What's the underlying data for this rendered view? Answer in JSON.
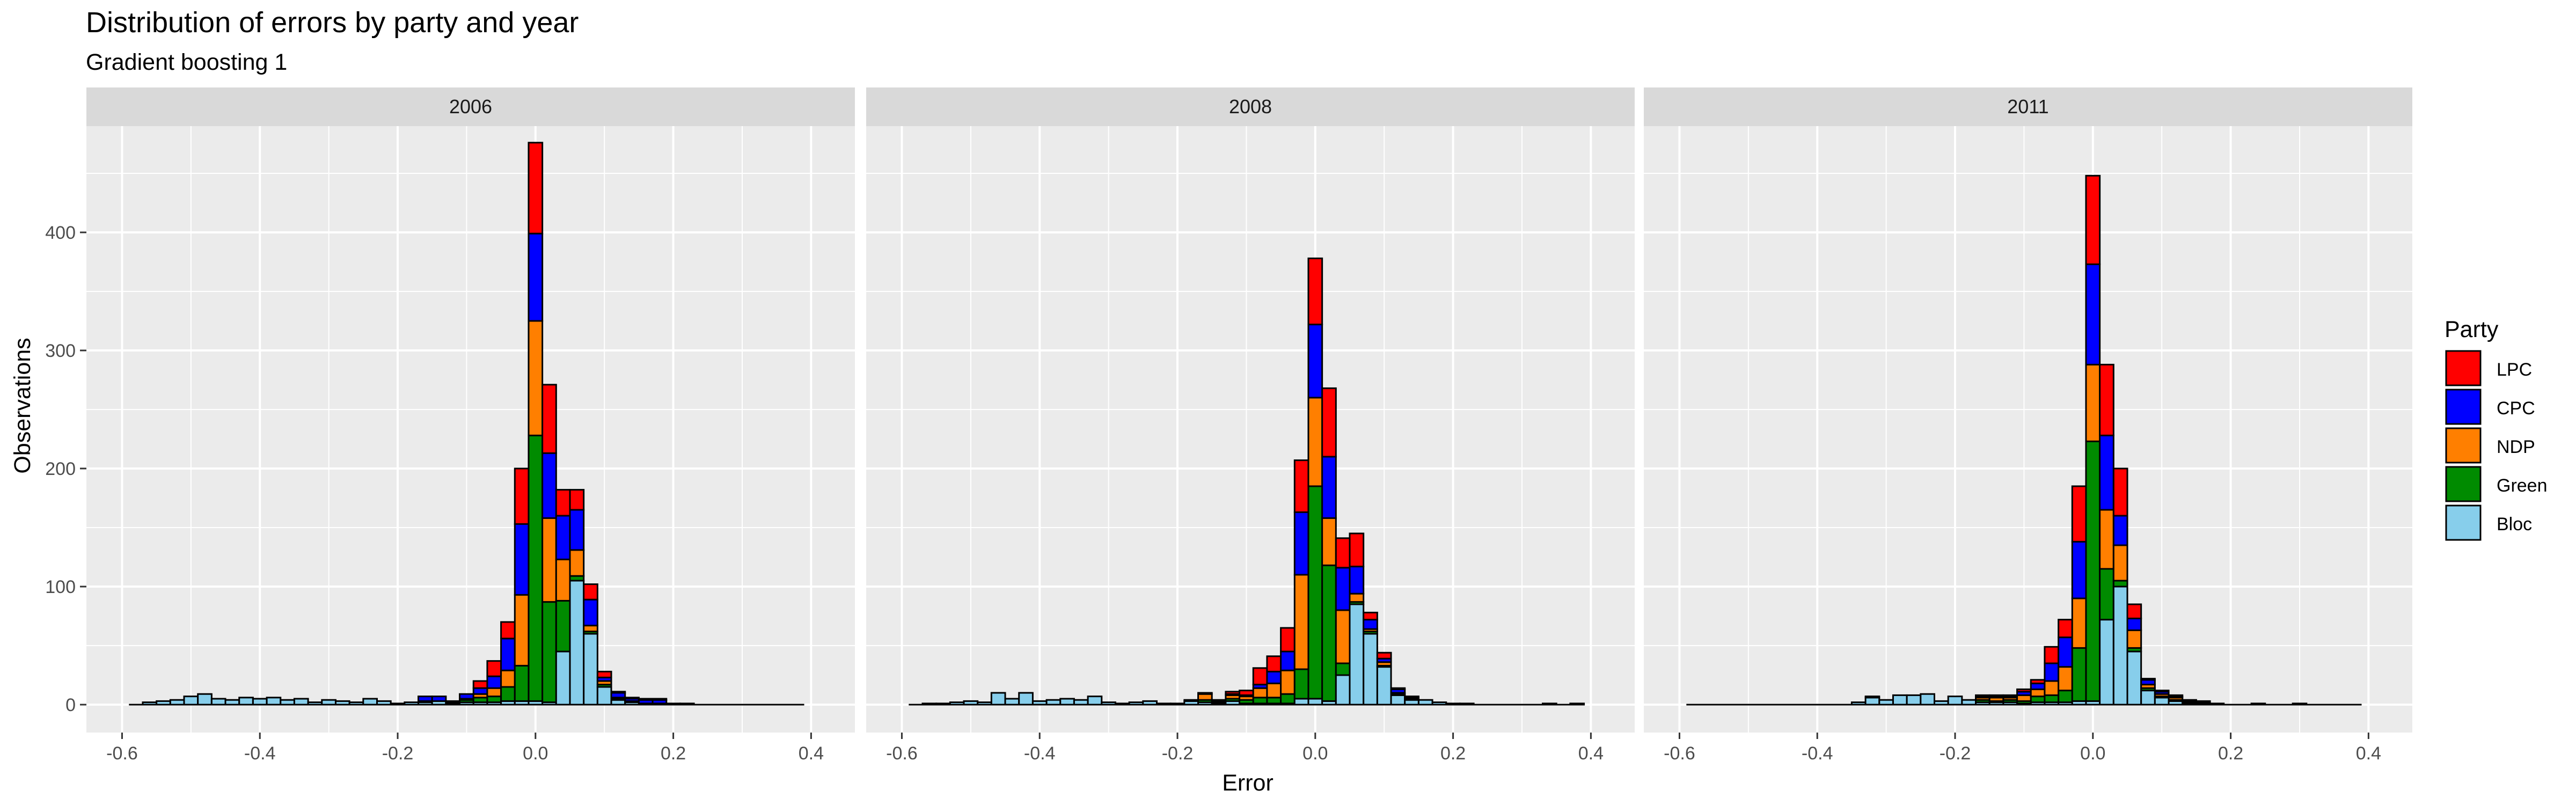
{
  "chart_data": {
    "type": "bar",
    "stacked": true,
    "faceted": true,
    "title": "Distribution of errors by party and year",
    "subtitle": "Gradient boosting 1",
    "xlabel": "Error",
    "ylabel": "Observations",
    "xlim": [
      -0.6,
      0.4
    ],
    "ylim": [
      0,
      490
    ],
    "xticks": [
      -0.6,
      -0.4,
      -0.2,
      0.0,
      0.2,
      0.4
    ],
    "xtick_labels": [
      "-0.6",
      "-0.4",
      "-0.2",
      "0.0",
      "0.2",
      "0.4"
    ],
    "yticks": [
      0,
      100,
      200,
      300,
      400
    ],
    "grid": true,
    "legend": {
      "title": "Party",
      "position": "right",
      "items": [
        {
          "name": "LPC",
          "color": "#ff0000"
        },
        {
          "name": "CPC",
          "color": "#0000ff"
        },
        {
          "name": "NDP",
          "color": "#ff7f00"
        },
        {
          "name": "Green",
          "color": "#008b00"
        },
        {
          "name": "Bloc",
          "color": "#87ceeb"
        }
      ]
    },
    "stack_order_bottom_to_top": [
      "Bloc",
      "Green",
      "NDP",
      "CPC",
      "LPC"
    ],
    "panels": [
      {
        "label": "2006",
        "bins": [
          {
            "x": -0.56,
            "Bloc": 2
          },
          {
            "x": -0.54,
            "Bloc": 3
          },
          {
            "x": -0.52,
            "Bloc": 4
          },
          {
            "x": -0.5,
            "Bloc": 7
          },
          {
            "x": -0.48,
            "Bloc": 9
          },
          {
            "x": -0.46,
            "Bloc": 5
          },
          {
            "x": -0.44,
            "Bloc": 4
          },
          {
            "x": -0.42,
            "Bloc": 6
          },
          {
            "x": -0.4,
            "Bloc": 5
          },
          {
            "x": -0.38,
            "Bloc": 6
          },
          {
            "x": -0.36,
            "Bloc": 4
          },
          {
            "x": -0.34,
            "Bloc": 5
          },
          {
            "x": -0.32,
            "Bloc": 2
          },
          {
            "x": -0.3,
            "Bloc": 4
          },
          {
            "x": -0.28,
            "Bloc": 3
          },
          {
            "x": -0.26,
            "Bloc": 2
          },
          {
            "x": -0.24,
            "Bloc": 5
          },
          {
            "x": -0.22,
            "Bloc": 3
          },
          {
            "x": -0.2,
            "Bloc": 1
          },
          {
            "x": -0.18,
            "Bloc": 2
          },
          {
            "x": -0.16,
            "Bloc": 2,
            "Green": 1,
            "CPC": 4
          },
          {
            "x": -0.14,
            "Bloc": 3,
            "CPC": 4
          },
          {
            "x": -0.12,
            "Bloc": 1,
            "Green": 1,
            "NDP": 1
          },
          {
            "x": -0.1,
            "Bloc": 2,
            "Green": 2,
            "NDP": 1,
            "CPC": 4
          },
          {
            "x": -0.08,
            "Bloc": 2,
            "Green": 4,
            "NDP": 3,
            "CPC": 5,
            "LPC": 6
          },
          {
            "x": -0.06,
            "Bloc": 2,
            "Green": 5,
            "NDP": 7,
            "CPC": 10,
            "LPC": 13
          },
          {
            "x": -0.04,
            "Bloc": 3,
            "Green": 12,
            "NDP": 14,
            "CPC": 27,
            "LPC": 14
          },
          {
            "x": -0.02,
            "Bloc": 3,
            "Green": 30,
            "NDP": 60,
            "CPC": 60,
            "LPC": 47
          },
          {
            "x": 0.0,
            "Bloc": 3,
            "Green": 225,
            "NDP": 97,
            "CPC": 74,
            "LPC": 77
          },
          {
            "x": 0.02,
            "Bloc": 2,
            "Green": 85,
            "NDP": 71,
            "CPC": 55,
            "LPC": 58
          },
          {
            "x": 0.04,
            "Bloc": 45,
            "Green": 43,
            "NDP": 35,
            "CPC": 37,
            "LPC": 22
          },
          {
            "x": 0.06,
            "Bloc": 105,
            "Green": 4,
            "NDP": 22,
            "CPC": 34,
            "LPC": 17
          },
          {
            "x": 0.08,
            "Bloc": 60,
            "Green": 2,
            "NDP": 5,
            "CPC": 22,
            "LPC": 13
          },
          {
            "x": 0.1,
            "Bloc": 15,
            "Green": 2,
            "NDP": 3,
            "CPC": 3,
            "LPC": 5
          },
          {
            "x": 0.12,
            "Bloc": 4,
            "Green": 1,
            "NDP": 1,
            "CPC": 4,
            "LPC": 1
          },
          {
            "x": 0.14,
            "Bloc": 2,
            "Green": 1,
            "CPC": 2,
            "LPC": 1
          },
          {
            "x": 0.16,
            "Bloc": 1,
            "CPC": 3,
            "LPC": 1
          },
          {
            "x": 0.18,
            "Bloc": 1,
            "CPC": 3,
            "LPC": 1
          },
          {
            "x": 0.2,
            "Bloc": 1
          },
          {
            "x": 0.22,
            "Bloc": 1
          }
        ]
      },
      {
        "label": "2008",
        "bins": [
          {
            "x": -0.56,
            "Bloc": 1
          },
          {
            "x": -0.54,
            "Bloc": 1
          },
          {
            "x": -0.52,
            "Bloc": 2
          },
          {
            "x": -0.5,
            "Bloc": 3
          },
          {
            "x": -0.48,
            "Bloc": 2
          },
          {
            "x": -0.46,
            "Bloc": 10
          },
          {
            "x": -0.44,
            "Bloc": 5
          },
          {
            "x": -0.42,
            "Bloc": 10
          },
          {
            "x": -0.4,
            "Bloc": 3
          },
          {
            "x": -0.38,
            "Bloc": 4
          },
          {
            "x": -0.36,
            "Bloc": 5
          },
          {
            "x": -0.34,
            "Bloc": 4
          },
          {
            "x": -0.32,
            "Bloc": 7
          },
          {
            "x": -0.3,
            "Bloc": 2
          },
          {
            "x": -0.28,
            "Bloc": 1
          },
          {
            "x": -0.26,
            "Bloc": 2
          },
          {
            "x": -0.24,
            "Bloc": 3
          },
          {
            "x": -0.22,
            "Bloc": 1
          },
          {
            "x": -0.2,
            "Bloc": 1
          },
          {
            "x": -0.18,
            "Bloc": 3,
            "NDP": 1
          },
          {
            "x": -0.16,
            "Bloc": 2,
            "Green": 2,
            "NDP": 5,
            "LPC": 1
          },
          {
            "x": -0.14,
            "Bloc": 1,
            "Green": 1,
            "NDP": 1,
            "LPC": 1
          },
          {
            "x": -0.12,
            "Bloc": 3,
            "Green": 2,
            "NDP": 3,
            "CPC": 1,
            "LPC": 2
          },
          {
            "x": -0.1,
            "Bloc": 1,
            "Green": 3,
            "NDP": 3,
            "CPC": 1,
            "LPC": 4
          },
          {
            "x": -0.08,
            "Bloc": 1,
            "Green": 5,
            "NDP": 8,
            "CPC": 3,
            "LPC": 14
          },
          {
            "x": -0.06,
            "Bloc": 1,
            "Green": 5,
            "NDP": 12,
            "CPC": 10,
            "LPC": 13
          },
          {
            "x": -0.04,
            "Bloc": 1,
            "Green": 8,
            "NDP": 20,
            "CPC": 16,
            "LPC": 20
          },
          {
            "x": -0.02,
            "Bloc": 5,
            "Green": 25,
            "NDP": 80,
            "CPC": 53,
            "LPC": 44
          },
          {
            "x": 0.0,
            "Bloc": 5,
            "Green": 180,
            "NDP": 75,
            "CPC": 62,
            "LPC": 56
          },
          {
            "x": 0.02,
            "Bloc": 3,
            "Green": 115,
            "NDP": 40,
            "CPC": 52,
            "LPC": 58
          },
          {
            "x": 0.04,
            "Bloc": 25,
            "Green": 10,
            "NDP": 45,
            "CPC": 36,
            "LPC": 25
          },
          {
            "x": 0.06,
            "Bloc": 85,
            "Green": 2,
            "NDP": 7,
            "CPC": 23,
            "LPC": 28
          },
          {
            "x": 0.08,
            "Bloc": 60,
            "Green": 2,
            "NDP": 2,
            "CPC": 8,
            "LPC": 6
          },
          {
            "x": 0.1,
            "Bloc": 32,
            "Green": 1,
            "NDP": 3,
            "CPC": 3,
            "LPC": 5
          },
          {
            "x": 0.12,
            "Bloc": 8,
            "Green": 1,
            "NDP": 1,
            "CPC": 3,
            "LPC": 1
          },
          {
            "x": 0.14,
            "Bloc": 4,
            "Green": 1,
            "CPC": 1,
            "LPC": 1
          },
          {
            "x": 0.16,
            "Bloc": 4
          },
          {
            "x": 0.18,
            "Bloc": 2
          },
          {
            "x": 0.2,
            "Bloc": 1
          },
          {
            "x": 0.22,
            "Bloc": 1
          },
          {
            "x": 0.34,
            "Bloc": 1
          },
          {
            "x": 0.38,
            "Bloc": 1
          }
        ]
      },
      {
        "label": "2011",
        "bins": [
          {
            "x": -0.34,
            "Bloc": 2
          },
          {
            "x": -0.32,
            "Bloc": 6,
            "Green": 1
          },
          {
            "x": -0.3,
            "Bloc": 4
          },
          {
            "x": -0.28,
            "Bloc": 8
          },
          {
            "x": -0.26,
            "Bloc": 8
          },
          {
            "x": -0.24,
            "Bloc": 9
          },
          {
            "x": -0.22,
            "Bloc": 3
          },
          {
            "x": -0.2,
            "Bloc": 7
          },
          {
            "x": -0.18,
            "Bloc": 4
          },
          {
            "x": -0.16,
            "Bloc": 2,
            "Green": 2,
            "NDP": 2,
            "CPC": 1,
            "LPC": 1
          },
          {
            "x": -0.14,
            "Bloc": 2,
            "Green": 1,
            "NDP": 3,
            "CPC": 1,
            "LPC": 1
          },
          {
            "x": -0.12,
            "Bloc": 2,
            "Green": 2,
            "NDP": 2,
            "CPC": 1,
            "LPC": 1
          },
          {
            "x": -0.1,
            "Bloc": 1,
            "Green": 2,
            "NDP": 5,
            "CPC": 3,
            "LPC": 2
          },
          {
            "x": -0.08,
            "Bloc": 2,
            "Green": 5,
            "NDP": 6,
            "CPC": 5,
            "LPC": 3
          },
          {
            "x": -0.06,
            "Bloc": 2,
            "Green": 6,
            "NDP": 12,
            "CPC": 15,
            "LPC": 14
          },
          {
            "x": -0.04,
            "Bloc": 2,
            "Green": 10,
            "NDP": 20,
            "CPC": 25,
            "LPC": 15
          },
          {
            "x": -0.02,
            "Bloc": 3,
            "Green": 45,
            "NDP": 42,
            "CPC": 48,
            "LPC": 47
          },
          {
            "x": 0.0,
            "Bloc": 3,
            "Green": 220,
            "NDP": 65,
            "CPC": 85,
            "LPC": 75
          },
          {
            "x": 0.02,
            "Bloc": 72,
            "Green": 43,
            "NDP": 50,
            "CPC": 63,
            "LPC": 60
          },
          {
            "x": 0.04,
            "Bloc": 100,
            "Green": 5,
            "NDP": 30,
            "CPC": 25,
            "LPC": 40
          },
          {
            "x": 0.06,
            "Bloc": 45,
            "Green": 3,
            "NDP": 15,
            "CPC": 10,
            "LPC": 12
          },
          {
            "x": 0.08,
            "Bloc": 12,
            "Green": 2,
            "NDP": 3,
            "CPC": 4,
            "LPC": 1
          },
          {
            "x": 0.1,
            "Bloc": 6,
            "Green": 1,
            "NDP": 2,
            "CPC": 2,
            "LPC": 1
          },
          {
            "x": 0.12,
            "Bloc": 3,
            "Green": 1,
            "NDP": 2,
            "CPC": 1,
            "LPC": 1
          },
          {
            "x": 0.14,
            "Bloc": 1,
            "Green": 1,
            "CPC": 1,
            "LPC": 1
          },
          {
            "x": 0.16,
            "Bloc": 1,
            "CPC": 1,
            "LPC": 1
          },
          {
            "x": 0.18,
            "Bloc": 1
          },
          {
            "x": 0.24,
            "Bloc": 1
          },
          {
            "x": 0.3,
            "Bloc": 1
          }
        ]
      }
    ]
  }
}
